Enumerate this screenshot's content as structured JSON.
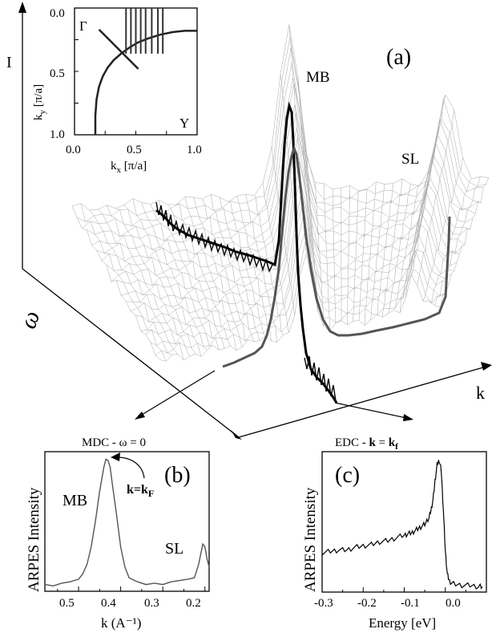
{
  "figure": {
    "panel_a": "(a)",
    "panel_b": "(b)",
    "panel_c": "(c)",
    "axis_intensity": "I",
    "axis_omega": "ω",
    "axis_k": "k",
    "label_mb": "MB",
    "label_sl": "SL"
  },
  "chart_data": [
    {
      "id": "inset-fermi-surface",
      "type": "line",
      "xlabel_main": "k",
      "xlabel_sub": "x",
      "xlabel_unit": "[π/a]",
      "ylabel_main": "k",
      "ylabel_sub": "y",
      "ylabel_unit": "[π/a]",
      "xlim": [
        0.0,
        1.0
      ],
      "ylim": [
        0.0,
        1.0
      ],
      "y_inverted": true,
      "xticks": [
        "0.0",
        "0.5",
        "1.0"
      ],
      "yticks": [
        "0.0",
        "0.5",
        "1.0"
      ],
      "corner_labels": {
        "top_left": "Γ",
        "bottom_right": "Y"
      },
      "fermi_surface": {
        "x": [
          0.17,
          0.17,
          0.18,
          0.2,
          0.23,
          0.27,
          0.32,
          0.38,
          0.45,
          0.52,
          0.6,
          0.7,
          0.8,
          0.9,
          1.0
        ],
        "y": [
          1.0,
          0.85,
          0.72,
          0.62,
          0.54,
          0.47,
          0.41,
          0.36,
          0.31,
          0.27,
          0.24,
          0.21,
          0.19,
          0.18,
          0.18
        ]
      },
      "cut_line": {
        "x": [
          0.2,
          0.52
        ],
        "y": [
          0.17,
          0.48
        ]
      },
      "vertical_cuts_x": [
        0.42,
        0.46,
        0.5,
        0.54,
        0.58,
        0.63,
        0.68,
        0.72
      ]
    },
    {
      "id": "mdc",
      "type": "line",
      "title": "MDC - ω = 0",
      "xlabel": "k (A⁻¹)",
      "ylabel": "ARPES Intensity",
      "xlim": [
        0.58,
        0.19
      ],
      "x_inverted": true,
      "ylim": [
        0,
        1
      ],
      "xticks": [
        "0.5",
        "0.4",
        "0.3",
        "0.2"
      ],
      "annotation": {
        "main": "k=k",
        "sub": "F",
        "x": 0.43,
        "y": 0.98
      },
      "peak_labels": [
        {
          "text": "MB",
          "x": 0.43,
          "y": 0.94
        },
        {
          "text": "SL",
          "x": 0.21,
          "y": 0.38
        }
      ],
      "series": [
        {
          "x": [
            0.58,
            0.56,
            0.54,
            0.52,
            0.5,
            0.49,
            0.48,
            0.47,
            0.46,
            0.45,
            0.44,
            0.435,
            0.43,
            0.425,
            0.42,
            0.41,
            0.4,
            0.39,
            0.38,
            0.36,
            0.34,
            0.32,
            0.3,
            0.28,
            0.26,
            0.24,
            0.225,
            0.215,
            0.205,
            0.2,
            0.195,
            0.19
          ],
          "y": [
            0.05,
            0.04,
            0.06,
            0.07,
            0.09,
            0.13,
            0.2,
            0.33,
            0.52,
            0.74,
            0.92,
            0.98,
            0.97,
            0.92,
            0.8,
            0.57,
            0.33,
            0.18,
            0.1,
            0.07,
            0.05,
            0.06,
            0.05,
            0.07,
            0.08,
            0.09,
            0.1,
            0.2,
            0.35,
            0.33,
            0.24,
            0.18
          ]
        }
      ]
    },
    {
      "id": "edc",
      "type": "line",
      "title_main": "EDC - ",
      "title_bold": "k",
      "title_eq": " = ",
      "title_bold2": "k",
      "title_sub": "f",
      "xlabel": "Energy [eV]",
      "ylabel": "ARPES Intensity",
      "xlim": [
        -0.3,
        0.1
      ],
      "ylim": [
        0,
        1
      ],
      "xticks": [
        "-0.3",
        "-0.2",
        "-0.1",
        "0.0"
      ],
      "series": [
        {
          "x": [
            -0.3,
            -0.28,
            -0.26,
            -0.24,
            -0.22,
            -0.2,
            -0.18,
            -0.16,
            -0.14,
            -0.12,
            -0.1,
            -0.09,
            -0.08,
            -0.07,
            -0.06,
            -0.05,
            -0.04,
            -0.035,
            -0.03,
            -0.025,
            -0.02,
            -0.015,
            -0.01,
            -0.005,
            0.0,
            0.005,
            0.01,
            0.02,
            0.04,
            0.06,
            0.08,
            0.09
          ],
          "y": [
            0.29,
            0.3,
            0.31,
            0.31,
            0.33,
            0.34,
            0.35,
            0.37,
            0.38,
            0.4,
            0.42,
            0.43,
            0.44,
            0.46,
            0.48,
            0.5,
            0.55,
            0.6,
            0.68,
            0.82,
            0.94,
            0.97,
            0.9,
            0.62,
            0.3,
            0.13,
            0.08,
            0.06,
            0.05,
            0.05,
            0.04,
            0.04
          ]
        }
      ]
    }
  ]
}
